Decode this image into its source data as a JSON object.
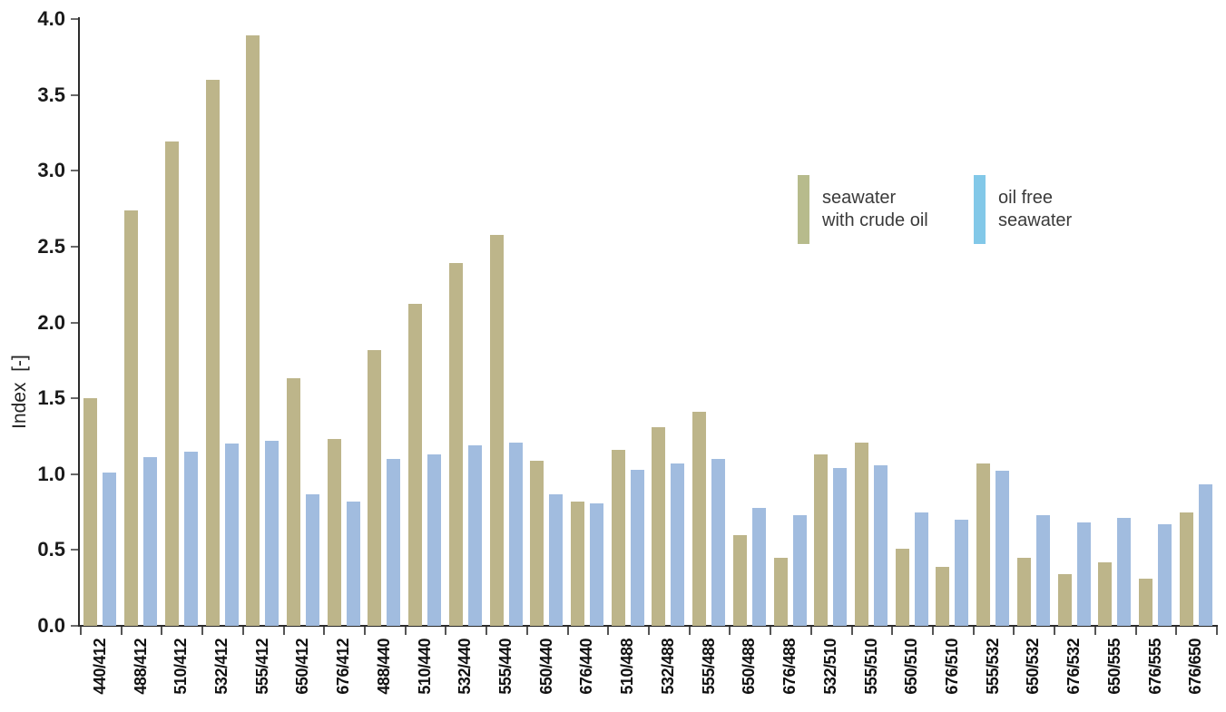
{
  "chart_data": {
    "type": "bar",
    "title": "",
    "xlabel": "",
    "ylabel": "Index  [-]",
    "ylim": [
      0,
      4
    ],
    "ytick_step": 0.5,
    "grid": false,
    "legend_position": "upper-right",
    "categories": [
      "440/412",
      "488/412",
      "510/412",
      "532/412",
      "555/412",
      "650/412",
      "676/412",
      "488/440",
      "510/440",
      "532/440",
      "555/440",
      "650/440",
      "676/440",
      "510/488",
      "532/488",
      "555/488",
      "650/488",
      "676/488",
      "532/510",
      "555/510",
      "650/510",
      "676/510",
      "555/532",
      "650/532",
      "676/532",
      "650/555",
      "676/555",
      "676/650"
    ],
    "series": [
      {
        "name": "seawater\nwith crude oil",
        "color": "#bdb58a",
        "values": [
          1.5,
          2.74,
          3.19,
          3.6,
          3.89,
          1.63,
          1.23,
          1.82,
          2.12,
          2.39,
          2.58,
          1.09,
          0.82,
          1.16,
          1.31,
          1.41,
          0.6,
          0.45,
          1.13,
          1.21,
          0.51,
          0.39,
          1.07,
          0.45,
          0.34,
          0.42,
          0.31,
          0.75
        ]
      },
      {
        "name": "oil free\nseawater",
        "color": "#a1bcdf",
        "values": [
          1.01,
          1.11,
          1.15,
          1.2,
          1.22,
          0.87,
          0.82,
          1.1,
          1.13,
          1.19,
          1.21,
          0.87,
          0.81,
          1.03,
          1.07,
          1.1,
          0.78,
          0.73,
          1.04,
          1.06,
          0.75,
          0.7,
          1.02,
          0.73,
          0.68,
          0.71,
          0.67,
          0.93
        ]
      }
    ]
  },
  "legend": {
    "items": [
      {
        "label": "seawater\nwith crude oil",
        "swatch_color": "#b7bb8c"
      },
      {
        "label": "oil free\nseawater",
        "swatch_color": "#82c8e8"
      }
    ]
  },
  "axis": {
    "line_color": "#2b2b2b",
    "tick_label_color": "#1a1a1a",
    "y_tick_labels": [
      "0.0",
      "0.5",
      "1.0",
      "1.5",
      "2.0",
      "2.5",
      "3.0",
      "3.5",
      "4.0"
    ]
  }
}
